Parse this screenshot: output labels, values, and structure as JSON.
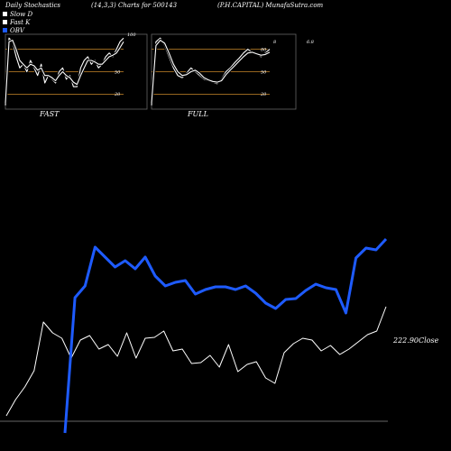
{
  "header": {
    "title": "Daily Stochastics",
    "params": "(14,3,3) Charts for 500143",
    "source": "(P.H.CAPITAL) MunafaSutra.com"
  },
  "legend": [
    {
      "label": "Slow  D",
      "color": "#ffffff"
    },
    {
      "label": "Fast K",
      "color": "#ffffff"
    },
    {
      "label": "OBV",
      "color": "#1e5bff"
    }
  ],
  "colors": {
    "background": "#000000",
    "price": "#ffffff",
    "obv": "#1e5bff",
    "levels": "#c8872a",
    "axis": "#666666"
  },
  "chart_data": [
    {
      "type": "line",
      "title": "FAST",
      "ylim": [
        0,
        100
      ],
      "yticks": [
        "80",
        "50",
        "20"
      ],
      "levels": [
        80,
        50,
        20
      ],
      "label_100": "100",
      "series": [
        {
          "values": [
            5,
            95,
            90,
            70,
            55,
            60,
            50,
            65,
            55,
            45,
            60,
            35,
            45,
            40,
            35,
            50,
            55,
            40,
            45,
            30,
            30,
            55,
            65,
            70,
            60,
            65,
            55,
            60,
            70,
            75,
            70,
            80,
            90,
            95
          ]
        },
        {
          "values": [
            8,
            90,
            92,
            80,
            65,
            60,
            55,
            60,
            58,
            52,
            55,
            45,
            45,
            42,
            38,
            45,
            50,
            45,
            42,
            36,
            33,
            45,
            55,
            65,
            65,
            63,
            60,
            60,
            65,
            70,
            72,
            75,
            82,
            90
          ]
        }
      ]
    },
    {
      "type": "line",
      "title": "FULL",
      "ylim": [
        0,
        100
      ],
      "yticks": [
        "80",
        "50",
        "20"
      ],
      "levels": [
        80,
        50,
        20
      ],
      "value_label": "8",
      "side_label": "6.8",
      "series": [
        {
          "values": [
            5,
            90,
            95,
            85,
            70,
            55,
            45,
            42,
            48,
            55,
            50,
            45,
            40,
            38,
            36,
            34,
            40,
            50,
            55,
            62,
            68,
            75,
            80,
            76,
            74,
            70,
            75,
            80
          ]
        },
        {
          "values": [
            8,
            85,
            92,
            88,
            75,
            60,
            50,
            45,
            46,
            50,
            52,
            48,
            42,
            39,
            37,
            36,
            38,
            46,
            52,
            58,
            64,
            70,
            75,
            76,
            74,
            72,
            73,
            76
          ]
        }
      ]
    },
    {
      "type": "line",
      "close_label": "222.90Close",
      "series": [
        {
          "values": [
            6,
            24,
            38,
            56,
            110,
            98,
            92,
            70,
            90,
            95,
            80,
            85,
            72,
            98,
            70,
            92,
            93,
            100,
            78,
            80,
            64,
            65,
            73,
            60,
            85,
            55,
            63,
            66,
            48,
            42,
            76,
            86,
            92,
            90,
            78,
            84,
            74,
            80,
            88,
            96,
            100,
            127
          ]
        },
        {
          "values": [
            -13,
            137,
            150,
            193,
            182,
            171,
            178,
            169,
            182,
            161,
            150,
            154,
            156,
            141,
            146,
            149,
            149,
            146,
            150,
            142,
            131,
            125,
            135,
            136,
            145,
            152,
            148,
            146,
            120,
            181,
            192,
            190,
            202
          ]
        }
      ]
    }
  ]
}
